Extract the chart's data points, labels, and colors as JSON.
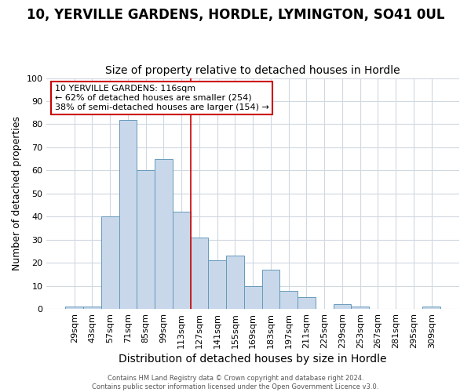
{
  "title": "10, YERVILLE GARDENS, HORDLE, LYMINGTON, SO41 0UL",
  "subtitle": "Size of property relative to detached houses in Hordle",
  "xlabel": "Distribution of detached houses by size in Hordle",
  "ylabel": "Number of detached properties",
  "categories": [
    "29sqm",
    "43sqm",
    "57sqm",
    "71sqm",
    "85sqm",
    "99sqm",
    "113sqm",
    "127sqm",
    "141sqm",
    "155sqm",
    "169sqm",
    "183sqm",
    "197sqm",
    "211sqm",
    "225sqm",
    "239sqm",
    "253sqm",
    "267sqm",
    "281sqm",
    "295sqm",
    "309sqm"
  ],
  "values": [
    1,
    1,
    40,
    82,
    60,
    65,
    42,
    31,
    21,
    23,
    10,
    17,
    8,
    5,
    0,
    2,
    1,
    0,
    0,
    0,
    1
  ],
  "bar_color": "#c8d8ea",
  "bar_edge_color": "#6699bb",
  "vline_color": "#cc0000",
  "annotation_text": "10 YERVILLE GARDENS: 116sqm\n← 62% of detached houses are smaller (254)\n38% of semi-detached houses are larger (154) →",
  "annotation_box_color": "#ffffff",
  "annotation_box_edge_color": "#cc0000",
  "footer_line1": "Contains HM Land Registry data © Crown copyright and database right 2024.",
  "footer_line2": "Contains public sector information licensed under the Open Government Licence v3.0.",
  "background_color": "#ffffff",
  "plot_bg_color": "#ffffff",
  "grid_color": "#d0d8e0",
  "ylim": [
    0,
    100
  ],
  "title_fontsize": 12,
  "subtitle_fontsize": 10,
  "ylabel_fontsize": 9,
  "xlabel_fontsize": 10,
  "tick_fontsize": 8,
  "footer_fontsize": 6
}
